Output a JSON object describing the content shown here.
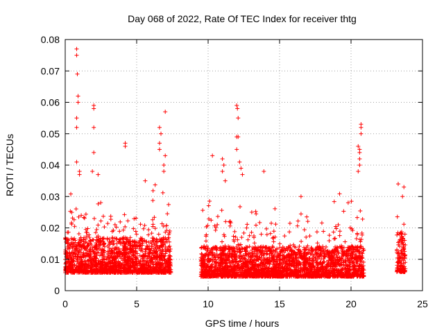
{
  "chart_data": {
    "type": "scatter",
    "title": "Day 068 of 2022, Rate Of TEC Index for receiver thtg",
    "xlabel": "GPS time / hours",
    "ylabel": "ROTI / TECUs",
    "xlim": [
      0,
      25
    ],
    "ylim": [
      0,
      0.08
    ],
    "xticks": [
      0,
      5,
      10,
      15,
      20,
      25
    ],
    "xtick_labels": [
      "0",
      "5",
      "10",
      "15",
      "20",
      "25"
    ],
    "yticks": [
      0,
      0.01,
      0.02,
      0.03,
      0.04,
      0.05,
      0.06,
      0.07,
      0.08
    ],
    "ytick_labels": [
      "0",
      "0.01",
      "0.02",
      "0.03",
      "0.04",
      "0.05",
      "0.06",
      "0.07",
      "0.08"
    ],
    "grid": true,
    "marker": "+",
    "color": "#ff0000",
    "series": [
      {
        "name": "ROTI",
        "segments": [
          {
            "x_start": 0.0,
            "x_end": 7.4,
            "base": 0.011,
            "spread": 0.007
          },
          {
            "x_start": 9.5,
            "x_end": 20.9,
            "base": 0.009,
            "spread": 0.006
          },
          {
            "x_start": 23.2,
            "x_end": 23.8,
            "base": 0.012,
            "spread": 0.008
          }
        ],
        "peaks": [
          {
            "x": 0.8,
            "y": 0.077
          },
          {
            "x": 0.8,
            "y": 0.075
          },
          {
            "x": 0.85,
            "y": 0.069
          },
          {
            "x": 0.9,
            "y": 0.062
          },
          {
            "x": 0.9,
            "y": 0.06
          },
          {
            "x": 0.8,
            "y": 0.055
          },
          {
            "x": 0.8,
            "y": 0.052
          },
          {
            "x": 0.8,
            "y": 0.041
          },
          {
            "x": 1.0,
            "y": 0.038
          },
          {
            "x": 1.0,
            "y": 0.037
          },
          {
            "x": 2.0,
            "y": 0.059
          },
          {
            "x": 2.0,
            "y": 0.058
          },
          {
            "x": 2.0,
            "y": 0.052
          },
          {
            "x": 2.0,
            "y": 0.044
          },
          {
            "x": 1.9,
            "y": 0.038
          },
          {
            "x": 2.3,
            "y": 0.037
          },
          {
            "x": 4.2,
            "y": 0.047
          },
          {
            "x": 4.2,
            "y": 0.046
          },
          {
            "x": 5.6,
            "y": 0.035
          },
          {
            "x": 6.6,
            "y": 0.052
          },
          {
            "x": 6.7,
            "y": 0.05
          },
          {
            "x": 6.6,
            "y": 0.047
          },
          {
            "x": 6.6,
            "y": 0.045
          },
          {
            "x": 7.0,
            "y": 0.057
          },
          {
            "x": 7.0,
            "y": 0.043
          },
          {
            "x": 6.9,
            "y": 0.04
          },
          {
            "x": 6.9,
            "y": 0.038
          },
          {
            "x": 10.3,
            "y": 0.043
          },
          {
            "x": 11.0,
            "y": 0.042
          },
          {
            "x": 11.1,
            "y": 0.04
          },
          {
            "x": 11.0,
            "y": 0.038
          },
          {
            "x": 11.2,
            "y": 0.035
          },
          {
            "x": 12.0,
            "y": 0.059
          },
          {
            "x": 12.05,
            "y": 0.058
          },
          {
            "x": 12.1,
            "y": 0.055
          },
          {
            "x": 12.0,
            "y": 0.049
          },
          {
            "x": 12.1,
            "y": 0.049
          },
          {
            "x": 12.0,
            "y": 0.045
          },
          {
            "x": 12.2,
            "y": 0.041
          },
          {
            "x": 12.3,
            "y": 0.039
          },
          {
            "x": 12.4,
            "y": 0.037
          },
          {
            "x": 13.9,
            "y": 0.038
          },
          {
            "x": 16.5,
            "y": 0.03
          },
          {
            "x": 19.8,
            "y": 0.028
          },
          {
            "x": 20.5,
            "y": 0.046
          },
          {
            "x": 20.6,
            "y": 0.045
          },
          {
            "x": 20.6,
            "y": 0.044
          },
          {
            "x": 20.7,
            "y": 0.053
          },
          {
            "x": 20.7,
            "y": 0.052
          },
          {
            "x": 20.7,
            "y": 0.05
          },
          {
            "x": 20.6,
            "y": 0.042
          },
          {
            "x": 20.6,
            "y": 0.04
          },
          {
            "x": 20.5,
            "y": 0.038
          },
          {
            "x": 23.3,
            "y": 0.034
          },
          {
            "x": 23.7,
            "y": 0.033
          },
          {
            "x": 23.6,
            "y": 0.03
          }
        ]
      }
    ]
  }
}
